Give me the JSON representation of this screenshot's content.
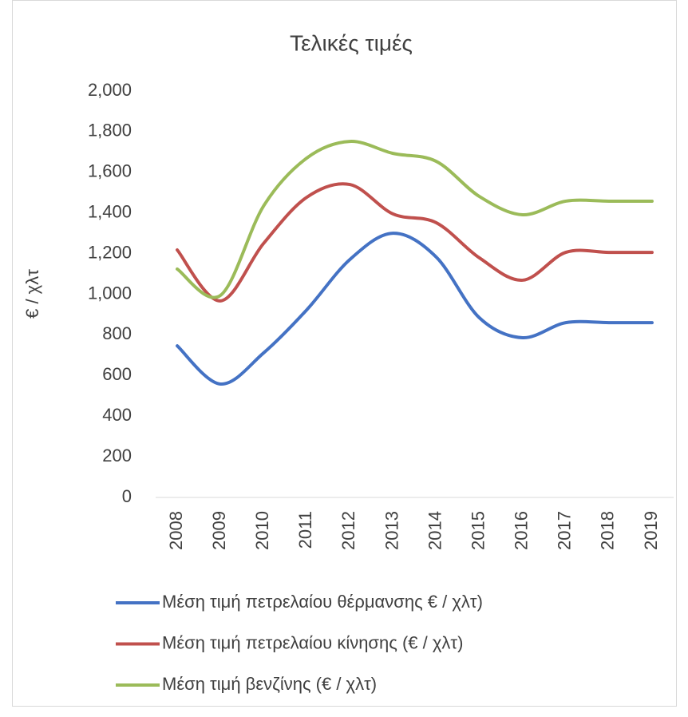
{
  "chart_data": {
    "type": "line",
    "title": "Τελικές τιμές",
    "y_label": "€ / χλτ",
    "categories": [
      "2008",
      "2009",
      "2010",
      "2011",
      "2012",
      "2013",
      "2014",
      "2015",
      "2016",
      "2017",
      "2018",
      "2019"
    ],
    "series": [
      {
        "name": "Μέση τιμή πετρελαίου θέρμανσης € / χλτ)",
        "color": "#4472c4",
        "values": [
          746,
          558,
          711,
          923,
          1171,
          1300,
          1183,
          884,
          786,
          860,
          860,
          860
        ]
      },
      {
        "name": "Μέση τιμή πετρελαίου κίνησης (€ / χλτ)",
        "color": "#c0504d",
        "values": [
          1218,
          967,
          1250,
          1477,
          1540,
          1395,
          1352,
          1179,
          1069,
          1206,
          1206,
          1206
        ]
      },
      {
        "name": "Μέση τιμή βενζίνης (€ / χλτ)",
        "color": "#9bbb59",
        "values": [
          1124,
          994,
          1434,
          1670,
          1752,
          1693,
          1654,
          1481,
          1391,
          1458,
          1458,
          1458
        ]
      }
    ],
    "ylim": [
      0,
      2000
    ],
    "yticks": [
      0,
      200,
      400,
      600,
      800,
      {
        "value": 1000,
        "label": "1,000"
      },
      {
        "value": 1200,
        "label": "1,200"
      },
      {
        "value": 1400,
        "label": "1,400"
      },
      {
        "value": 1600,
        "label": "1,600"
      },
      {
        "value": 1800,
        "label": "1,800"
      },
      {
        "value": 2000,
        "label": "2,000"
      }
    ],
    "grid": false,
    "legend": "bottom"
  }
}
